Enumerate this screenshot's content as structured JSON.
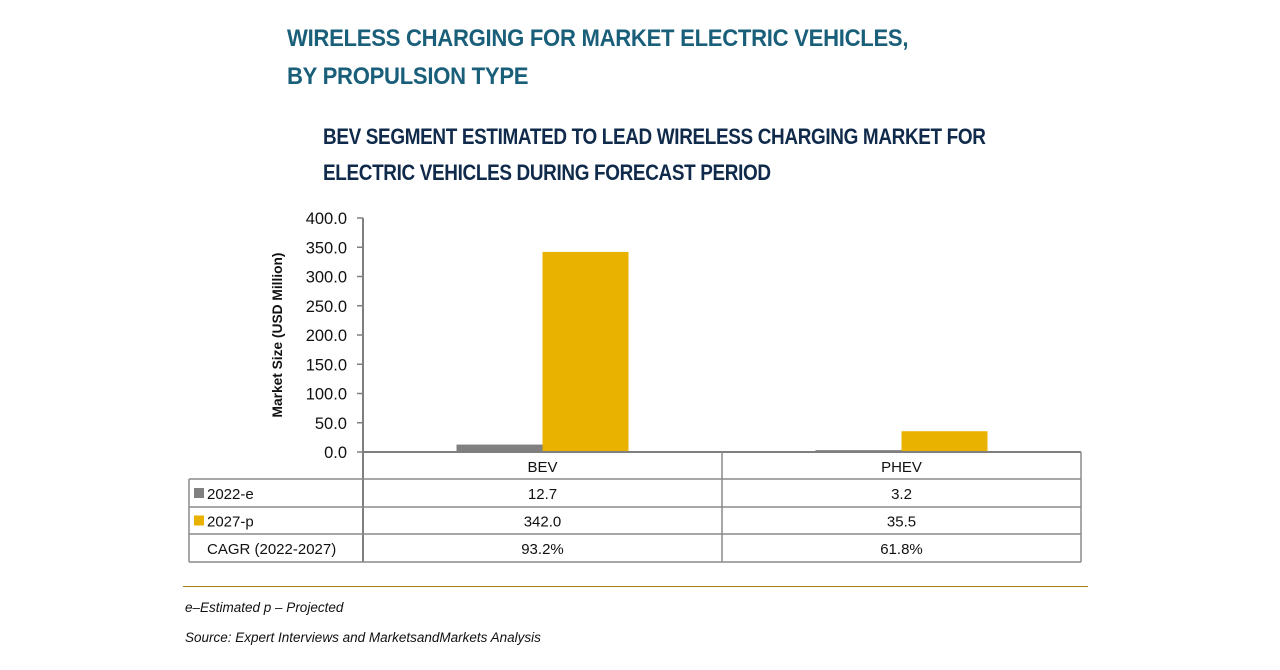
{
  "title_lines": [
    "WIRELESS CHARGING FOR MARKET ELECTRIC VEHICLES,",
    "BY PROPULSION TYPE"
  ],
  "subtitle_lines": [
    "BEV SEGMENT ESTIMATED TO LEAD WIRELESS CHARGING MARKET FOR",
    "ELECTRIC VEHICLES DURING FORECAST PERIOD"
  ],
  "colors": {
    "series_2022": "#808080",
    "series_2027": "#e9b100",
    "title": "#1a5f7a",
    "subtitle": "#0f2a4a",
    "separator": "#a08010"
  },
  "chart_data": {
    "type": "bar",
    "title": "BEV SEGMENT ESTIMATED TO LEAD WIRELESS CHARGING MARKET FOR ELECTRIC VEHICLES DURING FORECAST PERIOD",
    "categories": [
      "BEV",
      "PHEV"
    ],
    "series": [
      {
        "name": "2022-e",
        "values": [
          12.7,
          3.2
        ],
        "color": "#808080"
      },
      {
        "name": "2027-p",
        "values": [
          342.0,
          35.5
        ],
        "color": "#e9b100"
      }
    ],
    "extra_rows": [
      {
        "name": "CAGR (2022-2027)",
        "values": [
          "93.2%",
          "61.8%"
        ]
      }
    ],
    "xlabel": "",
    "ylabel": "Market Size (USD Million)",
    "ylim": [
      0,
      400
    ],
    "yticks": [
      "0.0",
      "50.0",
      "100.0",
      "150.0",
      "200.0",
      "250.0",
      "300.0",
      "350.0",
      "400.0"
    ],
    "grid": false,
    "legend": "data-table-below"
  },
  "notes": {
    "legend_note": "e–Estimated p – Projected",
    "source": "Source: Expert Interviews and MarketsandMarkets Analysis"
  }
}
